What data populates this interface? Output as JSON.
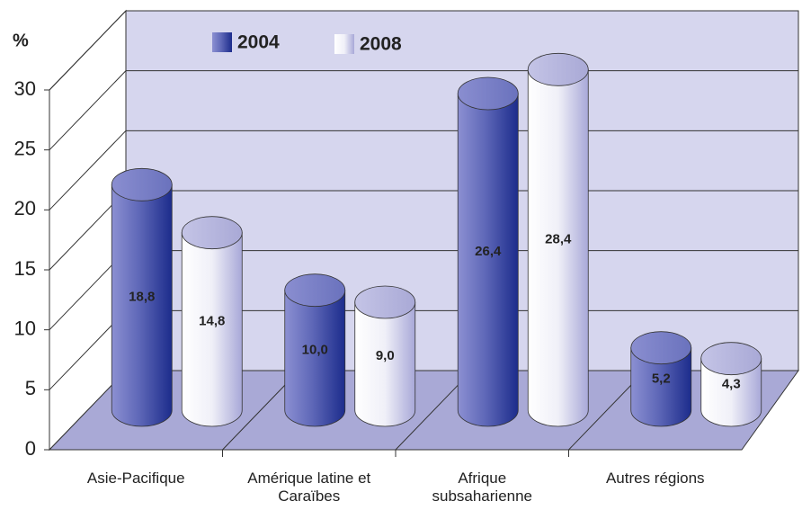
{
  "chart_data": {
    "type": "bar3d",
    "y_label": "%",
    "categories": [
      "Asie-Pacifique",
      "Amérique latine et Caraïbes",
      "Afrique subsaharienne",
      "Autres régions"
    ],
    "series": [
      {
        "name": "2004",
        "color": "#2a3a98",
        "values": [
          18.8,
          10.0,
          26.4,
          5.2
        ],
        "value_labels": [
          "18,8",
          "10,0",
          "26,4",
          "5,2"
        ]
      },
      {
        "name": "2008",
        "color": "#f4f4fb",
        "values": [
          14.8,
          9.0,
          28.4,
          4.3
        ],
        "value_labels": [
          "14,8",
          "9,0",
          "28,4",
          "4,3"
        ]
      }
    ],
    "ylim": [
      0,
      30
    ],
    "yticks": [
      0,
      5,
      10,
      15,
      20,
      25,
      30
    ],
    "grid": true
  }
}
